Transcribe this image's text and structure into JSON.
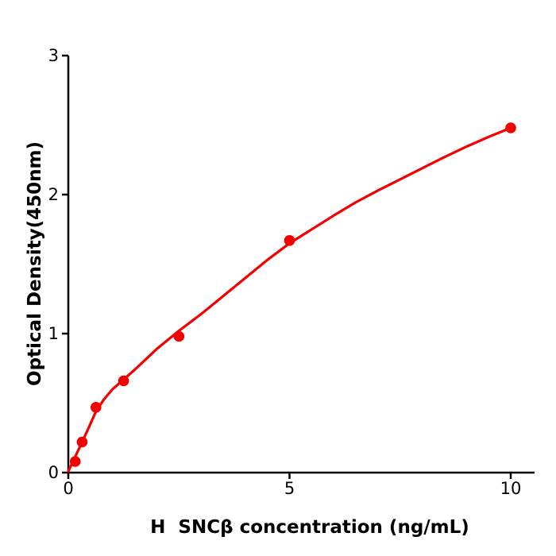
{
  "chart_data": {
    "type": "scatter",
    "title": "",
    "xlabel": "H  SNCβ concentration (ng/mL)",
    "ylabel": "Optical Density(450nm)",
    "xlim": [
      0,
      10.55
    ],
    "ylim": [
      0,
      3
    ],
    "xtick_labels": [
      "0",
      "5",
      "10"
    ],
    "xtick_values": [
      0,
      5,
      10
    ],
    "ytick_labels": [
      "0",
      "1",
      "2",
      "3"
    ],
    "ytick_values": [
      0,
      1,
      2,
      3
    ],
    "grid": false,
    "legend": "none",
    "marker_color": "#f40000",
    "line_color": "#f40000",
    "axis_color": "#000000",
    "points": [
      [
        0.156,
        0.08
      ],
      [
        0.312,
        0.22
      ],
      [
        0.625,
        0.47
      ],
      [
        1.25,
        0.66
      ],
      [
        2.5,
        0.98
      ],
      [
        5,
        1.67
      ],
      [
        10,
        2.48
      ]
    ],
    "fit_curve": [
      [
        0,
        0.01
      ],
      [
        0.156,
        0.115
      ],
      [
        0.312,
        0.22
      ],
      [
        0.47,
        0.33
      ],
      [
        0.625,
        0.44
      ],
      [
        0.8,
        0.525
      ],
      [
        1.0,
        0.6
      ],
      [
        1.25,
        0.67
      ],
      [
        1.5,
        0.74
      ],
      [
        1.75,
        0.815
      ],
      [
        2.0,
        0.89
      ],
      [
        2.5,
        1.02
      ],
      [
        3.0,
        1.14
      ],
      [
        3.5,
        1.27
      ],
      [
        4.0,
        1.4
      ],
      [
        4.5,
        1.53
      ],
      [
        5.0,
        1.65
      ],
      [
        5.5,
        1.75
      ],
      [
        6.0,
        1.85
      ],
      [
        6.5,
        1.945
      ],
      [
        7.0,
        2.03
      ],
      [
        7.5,
        2.11
      ],
      [
        8.0,
        2.19
      ],
      [
        8.5,
        2.27
      ],
      [
        9.0,
        2.345
      ],
      [
        9.5,
        2.415
      ],
      [
        10,
        2.48
      ]
    ]
  }
}
